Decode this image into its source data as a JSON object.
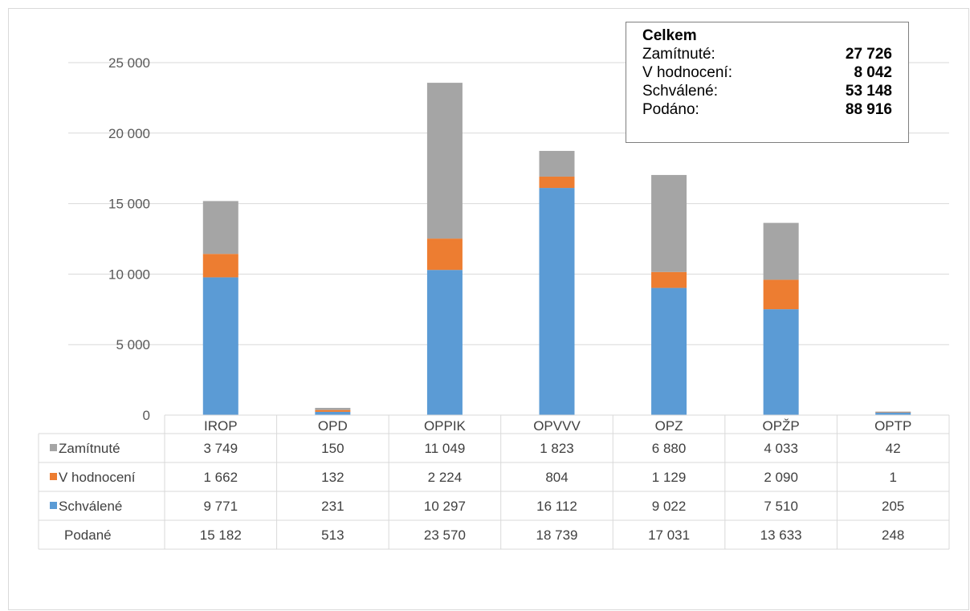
{
  "chart_data": {
    "type": "bar",
    "stacked": true,
    "categories": [
      "IROP",
      "OPD",
      "OPPIK",
      "OPVVV",
      "OPZ",
      "OPŽP",
      "OPTP"
    ],
    "series": [
      {
        "name": "Schválené",
        "color": "#5b9bd5",
        "values": [
          9771,
          231,
          10297,
          16112,
          9022,
          7510,
          205
        ],
        "labels": [
          "9 771",
          "231",
          "10 297",
          "16 112",
          "9 022",
          "7 510",
          "205"
        ]
      },
      {
        "name": "V hodnocení",
        "color": "#ed7d31",
        "values": [
          1662,
          132,
          2224,
          804,
          1129,
          2090,
          1
        ],
        "labels": [
          "1 662",
          "132",
          "2 224",
          "804",
          "1 129",
          "2 090",
          "1"
        ]
      },
      {
        "name": "Zamítnuté",
        "color": "#a5a5a5",
        "values": [
          3749,
          150,
          11049,
          1823,
          6880,
          4033,
          42
        ],
        "labels": [
          "3 749",
          "150",
          "11 049",
          "1 823",
          "6 880",
          "4 033",
          "42"
        ]
      }
    ],
    "totals": {
      "name": "Podané",
      "values": [
        15182,
        513,
        23570,
        18739,
        17031,
        13633,
        248
      ],
      "labels": [
        "15 182",
        "513",
        "23 570",
        "18 739",
        "17 031",
        "13 633",
        "248"
      ]
    },
    "ylim": [
      0,
      25000
    ],
    "yticks": [
      0,
      5000,
      10000,
      15000,
      20000,
      25000
    ],
    "ytick_labels": [
      "0",
      "5 000",
      "10 000",
      "15 000",
      "20 000",
      "25 000"
    ],
    "grid": true,
    "data_table": true,
    "table_row_order": [
      "Zamítnuté",
      "V hodnocení",
      "Schválené",
      "Podané"
    ]
  },
  "summary": {
    "title": "Celkem",
    "rows": [
      {
        "label": "Zamítnuté:",
        "value": "27 726"
      },
      {
        "label": "V hodnocení:",
        "value": "8 042"
      },
      {
        "label": "Schválené:",
        "value": "53 148"
      },
      {
        "label": "Podáno:",
        "value": "88 916"
      }
    ]
  }
}
